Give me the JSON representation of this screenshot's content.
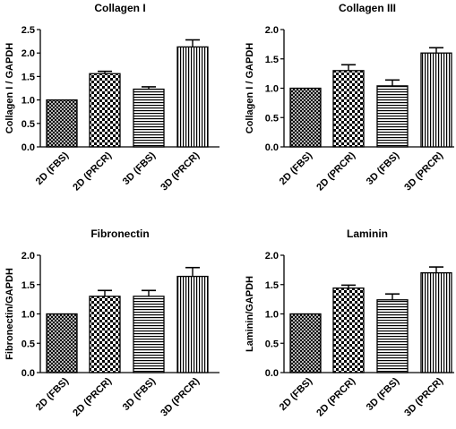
{
  "chart_data": [
    {
      "type": "bar",
      "title": "Collagen I",
      "ylabel": "Collagen I / GAPDH",
      "xlabel": "",
      "categories": [
        "2D (FBS)",
        "2D (PRCR)",
        "3D (FBS)",
        "3D (PRCR)"
      ],
      "values": [
        1.0,
        1.56,
        1.23,
        2.13
      ],
      "errors": [
        0.0,
        0.05,
        0.05,
        0.15
      ],
      "ylim": [
        0,
        2.5
      ],
      "yticks": [
        "0.0",
        "0.5",
        "1.0",
        "1.5",
        "2.0",
        "2.5"
      ],
      "ytick_values": [
        0,
        0.5,
        1.0,
        1.5,
        2.0,
        2.5
      ],
      "patterns": [
        "crosshatch",
        "checker",
        "hlines",
        "vlines"
      ],
      "grid": false,
      "legend": "none"
    },
    {
      "type": "bar",
      "title": "Collagen III",
      "ylabel": "Collagen I / GAPDH",
      "xlabel": "",
      "categories": [
        "2D (FBS)",
        "2D (PRCR)",
        "3D (FBS)",
        "3D (PRCR)"
      ],
      "values": [
        1.0,
        1.3,
        1.04,
        1.6
      ],
      "errors": [
        0.0,
        0.1,
        0.1,
        0.09
      ],
      "ylim": [
        0,
        2.0
      ],
      "yticks": [
        "0.0",
        "0.5",
        "1.0",
        "1.5",
        "2.0"
      ],
      "ytick_values": [
        0,
        0.5,
        1.0,
        1.5,
        2.0
      ],
      "patterns": [
        "crosshatch",
        "checker",
        "hlines",
        "vlines"
      ],
      "grid": false,
      "legend": "none"
    },
    {
      "type": "bar",
      "title": "Fibronectin",
      "ylabel": "Fibronectin/GAPDH",
      "xlabel": "",
      "categories": [
        "2D (FBS)",
        "2D (PRCR)",
        "3D (FBS)",
        "3D (PRCR)"
      ],
      "values": [
        1.0,
        1.3,
        1.3,
        1.64
      ],
      "errors": [
        0.0,
        0.1,
        0.1,
        0.15
      ],
      "ylim": [
        0,
        2.0
      ],
      "yticks": [
        "0.0",
        "0.5",
        "1.0",
        "1.5",
        "2.0"
      ],
      "ytick_values": [
        0,
        0.5,
        1.0,
        1.5,
        2.0
      ],
      "patterns": [
        "crosshatch",
        "checker",
        "hlines",
        "vlines"
      ],
      "grid": false,
      "legend": "none"
    },
    {
      "type": "bar",
      "title": "Laminin",
      "ylabel": "Laminin/GAPDH",
      "xlabel": "",
      "categories": [
        "2D (FBS)",
        "2D (PRCR)",
        "3D (FBS)",
        "3D (PRCR)"
      ],
      "values": [
        1.0,
        1.44,
        1.24,
        1.7
      ],
      "errors": [
        0.0,
        0.05,
        0.1,
        0.1
      ],
      "ylim": [
        0,
        2.0
      ],
      "yticks": [
        "0.0",
        "0.5",
        "1.0",
        "1.5",
        "2.0"
      ],
      "ytick_values": [
        0,
        0.5,
        1.0,
        1.5,
        2.0
      ],
      "patterns": [
        "crosshatch",
        "checker",
        "hlines",
        "vlines"
      ],
      "grid": false,
      "legend": "none"
    }
  ]
}
